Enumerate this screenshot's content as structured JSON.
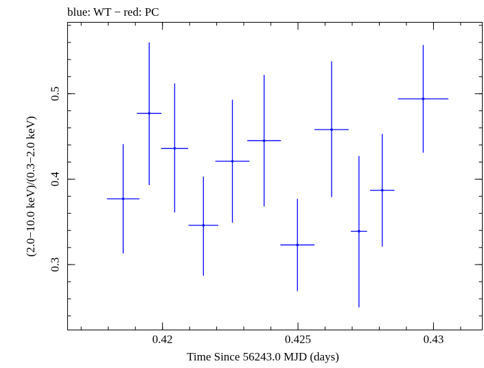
{
  "chart_data": {
    "type": "scatter",
    "title": "blue: WT − red: PC",
    "xlabel": "Time Since 56243.0 MJD (days)",
    "ylabel": "(2.0−10.0 keV)/(0.3−2.0 keV)",
    "xlim": [
      0.4165,
      0.4318
    ],
    "ylim": [
      0.2235,
      0.5836
    ],
    "xticks": [
      {
        "value": 0.42,
        "label": "0.42"
      },
      {
        "value": 0.425,
        "label": "0.425"
      },
      {
        "value": 0.43,
        "label": "0.43"
      }
    ],
    "yticks": [
      {
        "value": 0.3,
        "label": "0.3"
      },
      {
        "value": 0.4,
        "label": "0.4"
      },
      {
        "value": 0.5,
        "label": "0.5"
      }
    ],
    "xminor_step": 0.001,
    "yminor_step": 0.02,
    "grid": false,
    "series": [
      {
        "color": "#0000ff",
        "points": [
          {
            "x": 0.41855,
            "xerr": 0.0006,
            "y": 0.377,
            "yerr_low": 0.064,
            "yerr_high": 0.064
          },
          {
            "x": 0.41951,
            "xerr": 0.00045,
            "y": 0.477,
            "yerr_low": 0.084,
            "yerr_high": 0.083
          },
          {
            "x": 0.42045,
            "xerr": 0.0005,
            "y": 0.436,
            "yerr_low": 0.075,
            "yerr_high": 0.076
          },
          {
            "x": 0.42151,
            "xerr": 0.00055,
            "y": 0.346,
            "yerr_low": 0.059,
            "yerr_high": 0.057
          },
          {
            "x": 0.42258,
            "xerr": 0.00063,
            "y": 0.421,
            "yerr_low": 0.072,
            "yerr_high": 0.072
          },
          {
            "x": 0.42375,
            "xerr": 0.00062,
            "y": 0.445,
            "yerr_low": 0.077,
            "yerr_high": 0.077
          },
          {
            "x": 0.42498,
            "xerr": 0.00063,
            "y": 0.323,
            "yerr_low": 0.054,
            "yerr_high": 0.054
          },
          {
            "x": 0.42624,
            "xerr": 0.00063,
            "y": 0.458,
            "yerr_low": 0.079,
            "yerr_high": 0.08
          },
          {
            "x": 0.42725,
            "xerr": 0.0003,
            "y": 0.339,
            "yerr_low": 0.089,
            "yerr_high": 0.088
          },
          {
            "x": 0.42811,
            "xerr": 0.00045,
            "y": 0.387,
            "yerr_low": 0.066,
            "yerr_high": 0.066
          },
          {
            "x": 0.42962,
            "xerr": 0.00093,
            "y": 0.494,
            "yerr_low": 0.063,
            "yerr_high": 0.063
          }
        ]
      }
    ]
  }
}
